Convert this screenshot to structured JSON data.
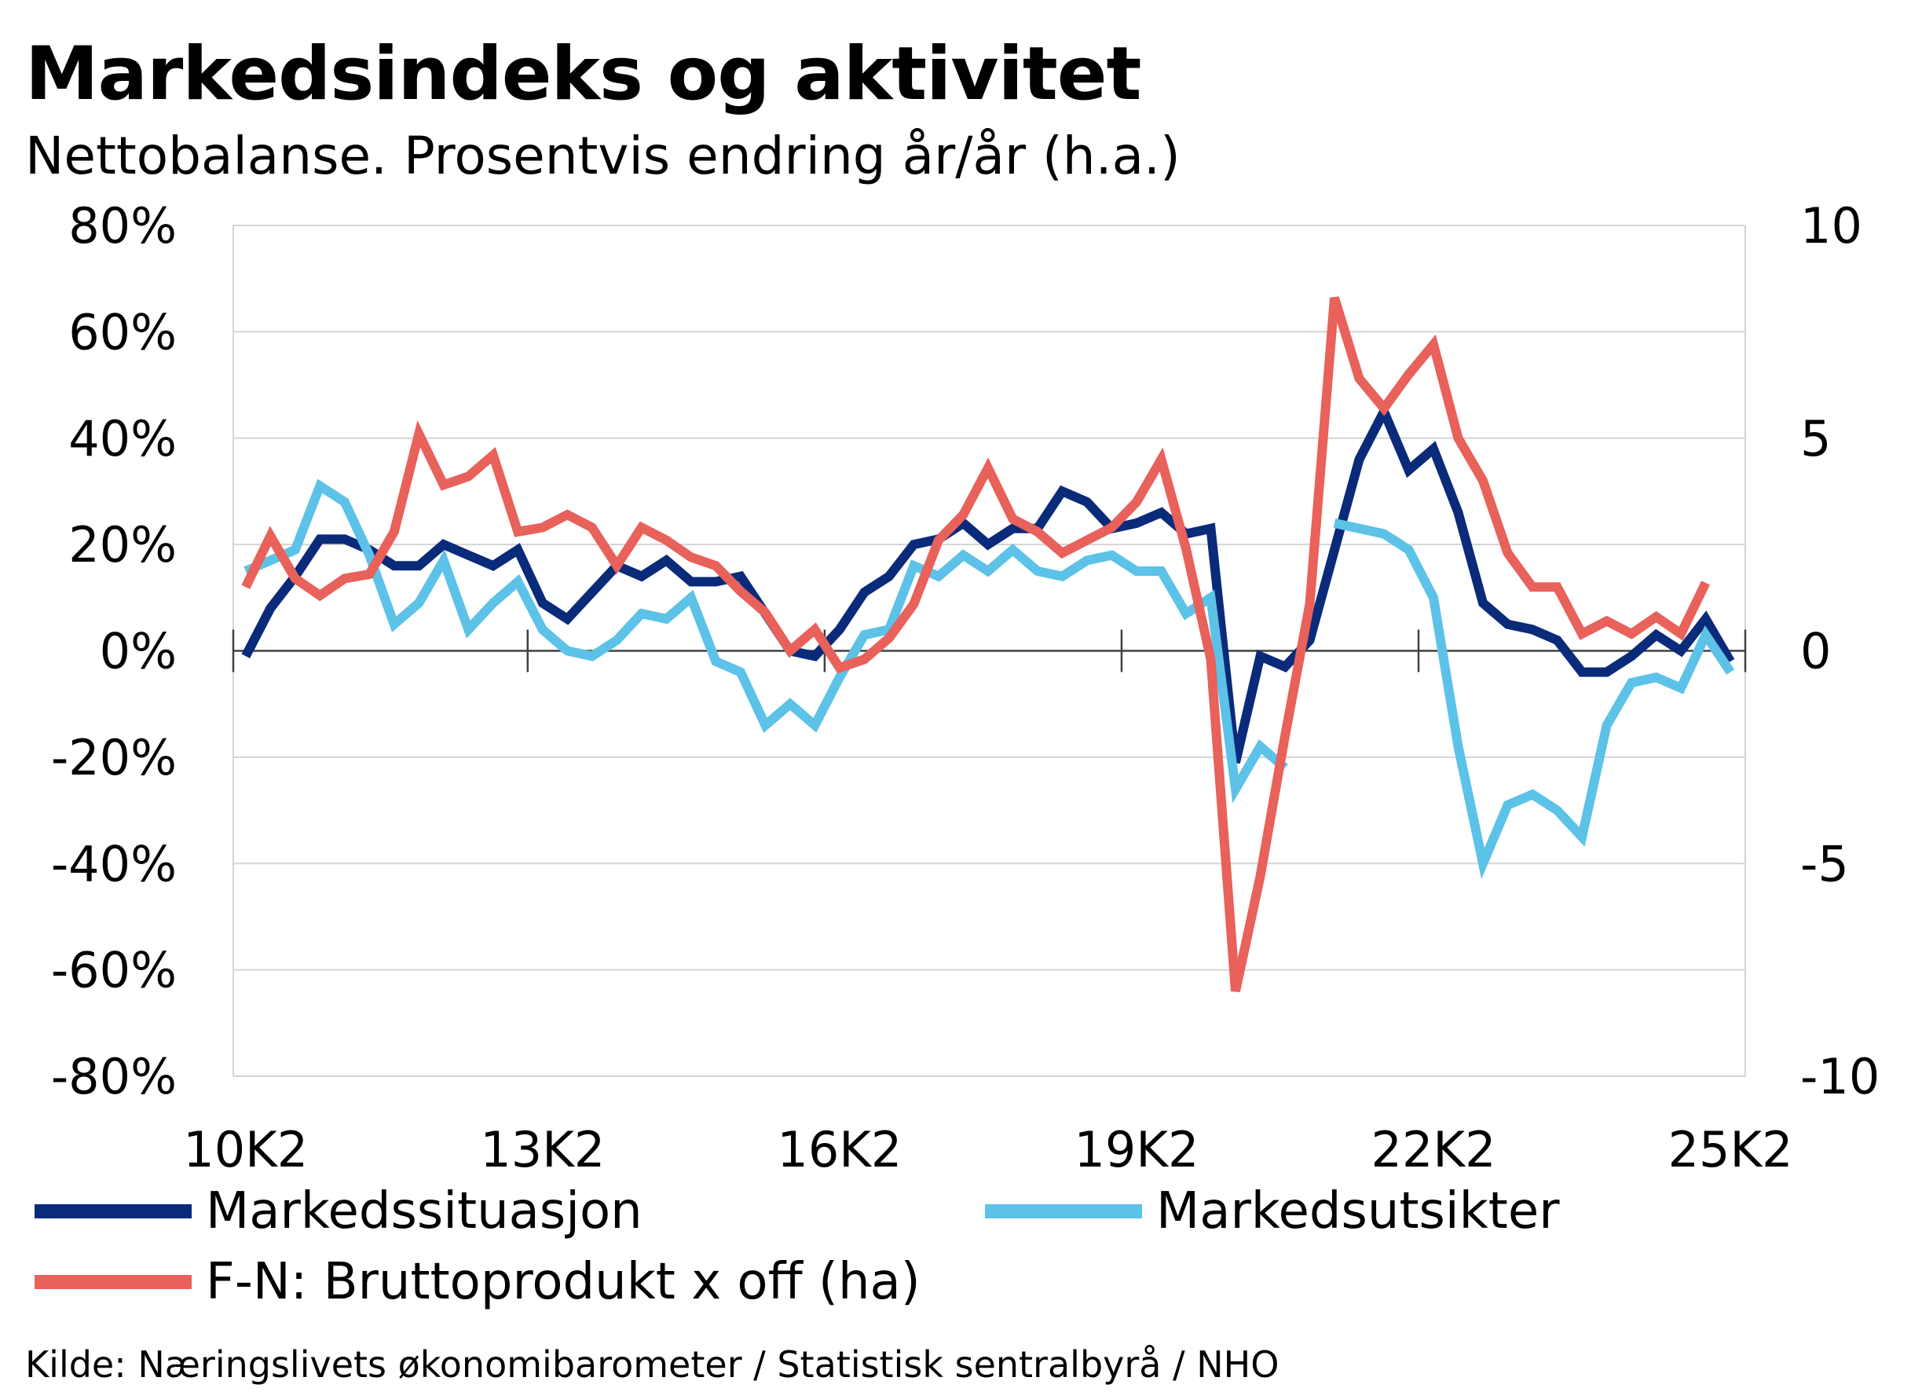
{
  "chart_data": {
    "type": "line",
    "title": "Markedsindeks  og aktivitet",
    "subtitle": "Nettobalanse. Prosentvis endring år/år (h.a.)",
    "source": "Kilde: Næringslivets økonomibarometer / Statistisk sentralbyrå / NHO",
    "x_tick_labels": [
      "10K2",
      "13K2",
      "16K2",
      "19K2",
      "22K2",
      "25K2"
    ],
    "x_tick_values": [
      0,
      12,
      24,
      36,
      48,
      60
    ],
    "y_left": {
      "ticks": [
        -80,
        -60,
        -40,
        -20,
        0,
        20,
        40,
        60,
        80
      ],
      "tick_labels": [
        "-80%",
        "-60%",
        "-40%",
        "-20%",
        "0%",
        "20%",
        "40%",
        "60%",
        "80%"
      ],
      "range": [
        -80,
        80
      ]
    },
    "y_right": {
      "ticks": [
        -10,
        -5,
        0,
        5,
        10
      ],
      "tick_labels": [
        "-10",
        "-5",
        "0",
        "5",
        "10"
      ],
      "range": [
        -10,
        10
      ]
    },
    "grid": true,
    "legend_position": "bottom",
    "series": [
      {
        "name": "Markedssituasjon",
        "axis": "left",
        "color": "#0a2a7a",
        "x_start": 0,
        "values": [
          -1,
          8,
          14,
          21,
          21,
          19,
          16,
          16,
          20,
          18,
          16,
          19,
          9,
          6,
          11,
          16,
          14,
          17,
          13,
          13,
          14,
          7,
          0,
          -1,
          4,
          11,
          14,
          20,
          21,
          24,
          20,
          23,
          23,
          30,
          28,
          23,
          24,
          26,
          22,
          23,
          -21,
          -1,
          -3,
          2,
          19,
          36,
          45,
          34,
          38,
          26,
          9,
          5,
          4,
          2,
          -4,
          -4,
          -1,
          3,
          0,
          6,
          -2
        ]
      },
      {
        "name": "Markedsutsikter",
        "axis": "left",
        "color": "#5cc2e8",
        "x_start": 0,
        "values": [
          15,
          17,
          19,
          31,
          28,
          18,
          5,
          9,
          17,
          4,
          9,
          13,
          4,
          0,
          -1,
          2,
          7,
          6,
          10,
          -2,
          -4,
          -14,
          -10,
          -14,
          -5,
          3,
          4,
          16,
          14,
          18,
          15,
          19,
          15,
          14,
          17,
          18,
          15,
          15,
          7,
          10,
          -26,
          -18,
          -22,
          null,
          24,
          23,
          22,
          19,
          10,
          -18,
          -40,
          -29,
          -27,
          -30,
          -35,
          -14,
          -6,
          -5,
          -7,
          3,
          -4
        ]
      },
      {
        "name": "F-N: Bruttoprodukt x off (ha)",
        "axis": "right",
        "color": "#e8615a",
        "x_start": 0,
        "values": [
          1.5,
          2.7,
          1.7,
          1.3,
          1.7,
          1.8,
          2.8,
          5.1,
          3.9,
          4.1,
          4.6,
          2.8,
          2.9,
          3.2,
          2.9,
          2.0,
          2.9,
          2.6,
          2.2,
          2.0,
          1.4,
          0.9,
          0.0,
          0.5,
          -0.4,
          -0.2,
          0.3,
          1.1,
          2.6,
          3.2,
          4.3,
          3.1,
          2.8,
          2.3,
          2.6,
          2.9,
          3.5,
          4.5,
          2.4,
          -0.2,
          -8.0,
          -5.3,
          -2.0,
          1.1,
          8.3,
          6.4,
          5.7,
          6.5,
          7.2,
          5.0,
          4.0,
          2.3,
          1.5,
          1.5,
          0.4,
          0.7,
          0.4,
          0.8,
          0.4,
          1.6
        ]
      }
    ]
  }
}
